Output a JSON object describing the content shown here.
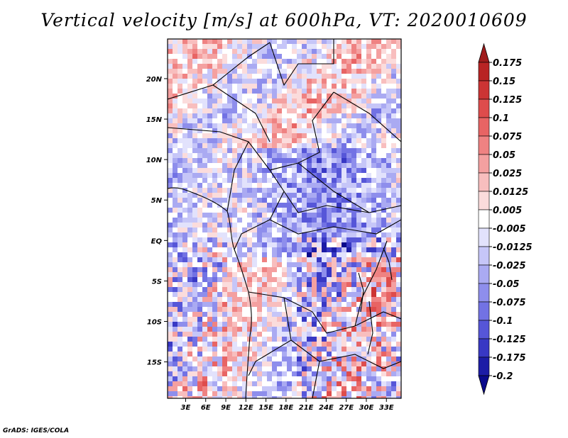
{
  "chart_data": {
    "type": "heatmap",
    "title": "Vertical velocity [m/s] at 600hPa, VT: 2020010609",
    "variable": "Vertical velocity",
    "units": "m/s",
    "level": "600hPa",
    "valid_time": "2020010609",
    "x_ticks": [
      "3E",
      "6E",
      "9E",
      "12E",
      "15E",
      "18E",
      "21E",
      "24E",
      "27E",
      "30E",
      "33E"
    ],
    "x_tick_values": [
      3,
      6,
      9,
      12,
      15,
      18,
      21,
      24,
      27,
      30,
      33
    ],
    "y_ticks": [
      "20N",
      "15N",
      "10N",
      "5N",
      "EQ",
      "5S",
      "10S",
      "15S"
    ],
    "y_tick_values": [
      20,
      15,
      10,
      5,
      0,
      -5,
      -10,
      -15
    ],
    "xlim": [
      0.3,
      35.2
    ],
    "ylim": [
      -19.5,
      24.9
    ],
    "colorbar_levels": [
      "0.175",
      "0.15",
      "0.125",
      "0.1",
      "0.075",
      "0.05",
      "0.025",
      "0.0125",
      "0.005",
      "-0.005",
      "-0.0125",
      "-0.025",
      "-0.05",
      "-0.075",
      "-0.1",
      "-0.125",
      "-0.175",
      "-0.2"
    ],
    "colorbar_colors": [
      "#a01c1c",
      "#b82424",
      "#cc3434",
      "#de4c4c",
      "#e86464",
      "#ef8282",
      "#f4a0a0",
      "#f8bebe",
      "#fbdcdc",
      "#ffffff",
      "#e2e2fc",
      "#c6c6f8",
      "#aaaaf2",
      "#8e8eec",
      "#7272e4",
      "#5656d8",
      "#3838c4",
      "#1c1ca6",
      "#0a0a8c"
    ]
  },
  "footer": "GrADS: IGES/COLA"
}
